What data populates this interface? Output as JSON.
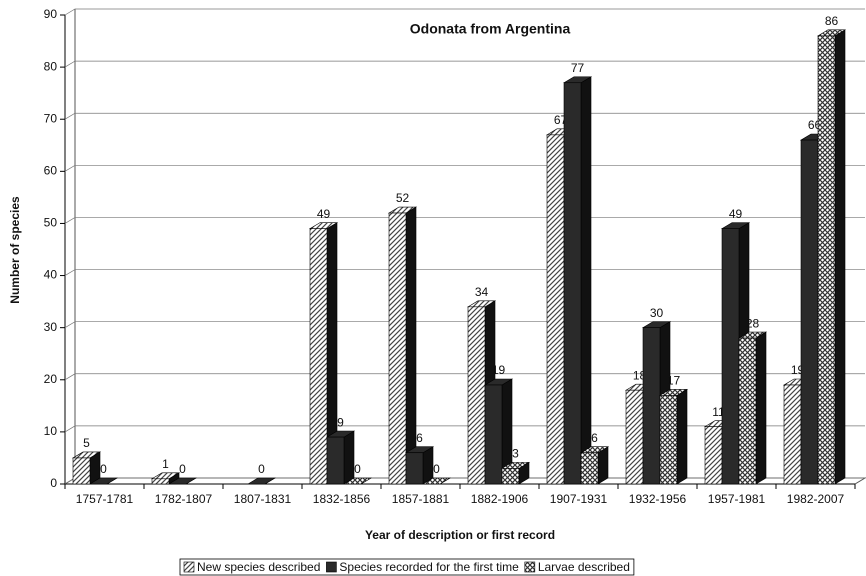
{
  "chart_data": {
    "type": "bar3d",
    "title": "Odonata from Argentina",
    "x_label": "Year of description or first record",
    "y_label": "Number of species",
    "categories": [
      "1757-1781",
      "1782-1807",
      "1807-1831",
      "1832-1856",
      "1857-1881",
      "1882-1906",
      "1907-1931",
      "1932-1956",
      "1957-1981",
      "1982-2007"
    ],
    "series": [
      {
        "name": "New species described",
        "color": "#c8c8c8",
        "pattern": "hatch",
        "values": [
          5,
          1,
          null,
          49,
          52,
          34,
          67,
          18,
          11,
          19
        ]
      },
      {
        "name": "Species recorded for the first time",
        "color": "#2a2a2a",
        "pattern": "solid",
        "values": [
          0,
          0,
          0,
          9,
          6,
          19,
          77,
          30,
          49,
          66
        ]
      },
      {
        "name": "Larvae described",
        "color": "#8a8a8a",
        "pattern": "cross",
        "values": [
          null,
          null,
          null,
          0,
          0,
          3,
          6,
          17,
          28,
          86
        ]
      }
    ],
    "ylim": [
      0,
      90
    ],
    "yticks": [
      0,
      10,
      20,
      30,
      40,
      50,
      60,
      70,
      80,
      90
    ],
    "grid": true,
    "legend": "bottom"
  }
}
